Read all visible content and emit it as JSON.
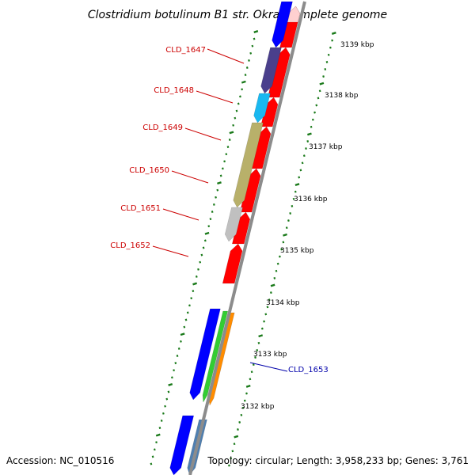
{
  "title": "Clostridium botulinum B1 str. Okra, complete genome",
  "accession": "Accession: NC_010516",
  "topology": "Topology: circular; Length: 3,958,233 bp; Genes: 3,761",
  "colors": {
    "backbone": "#8c8c8c",
    "tick": "#1a7a1a",
    "forward_cds": "#ff0000",
    "label_red": "#cc0000",
    "label_blue": "#0000aa",
    "navy": "#4a3f8c",
    "cyan": "#1ab8f0",
    "olive": "#b8b06a",
    "silver": "#c0c0c0",
    "blue": "#0000ff",
    "green": "#33cc33",
    "orange": "#ff8c00",
    "steel": "#4f7fb0"
  },
  "kbp_ticks": [
    "3139 kbp",
    "3138 kbp",
    "3137 kbp",
    "3136 kbp",
    "3135 kbp",
    "3134 kbp",
    "3133 kbp",
    "3132 kbp"
  ],
  "gene_labels": [
    {
      "name": "CLD_1647",
      "color": "label_red"
    },
    {
      "name": "CLD_1648",
      "color": "label_red"
    },
    {
      "name": "CLD_1649",
      "color": "label_red"
    },
    {
      "name": "CLD_1650",
      "color": "label_red"
    },
    {
      "name": "CLD_1651",
      "color": "label_red"
    },
    {
      "name": "CLD_1652",
      "color": "label_red"
    },
    {
      "name": "CLD_1653",
      "color": "label_blue"
    }
  ]
}
